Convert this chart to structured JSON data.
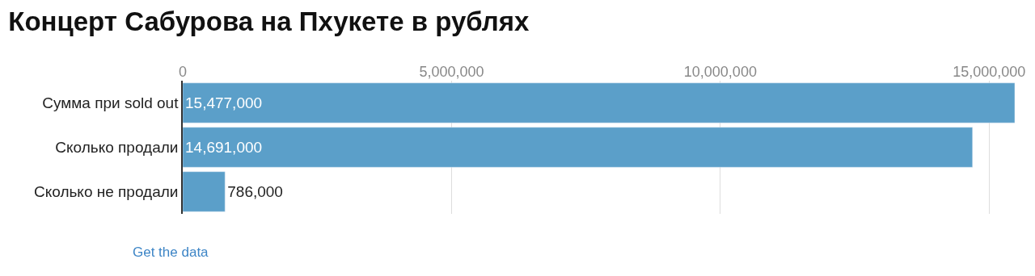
{
  "chart_data": {
    "type": "bar",
    "orientation": "horizontal",
    "title": "Концерт Сабурова на Пхукете в рублях",
    "categories": [
      "Сумма при sold out",
      "Сколько продали",
      "Сколько не продали"
    ],
    "values": [
      15477000,
      14691000,
      786000
    ],
    "value_labels": [
      "15,477,000",
      "14,691,000",
      "786,000"
    ],
    "color": "#5b9fc9",
    "xlim": [
      0,
      15477000
    ],
    "xticks": [
      {
        "value": 0,
        "label": "0"
      },
      {
        "value": 5000000,
        "label": "5,000,000"
      },
      {
        "value": 10000000,
        "label": "10,000,000"
      },
      {
        "value": 15000000,
        "label": "15,000,000"
      }
    ],
    "grid": "x",
    "annotations": [
      "Get the data"
    ]
  }
}
